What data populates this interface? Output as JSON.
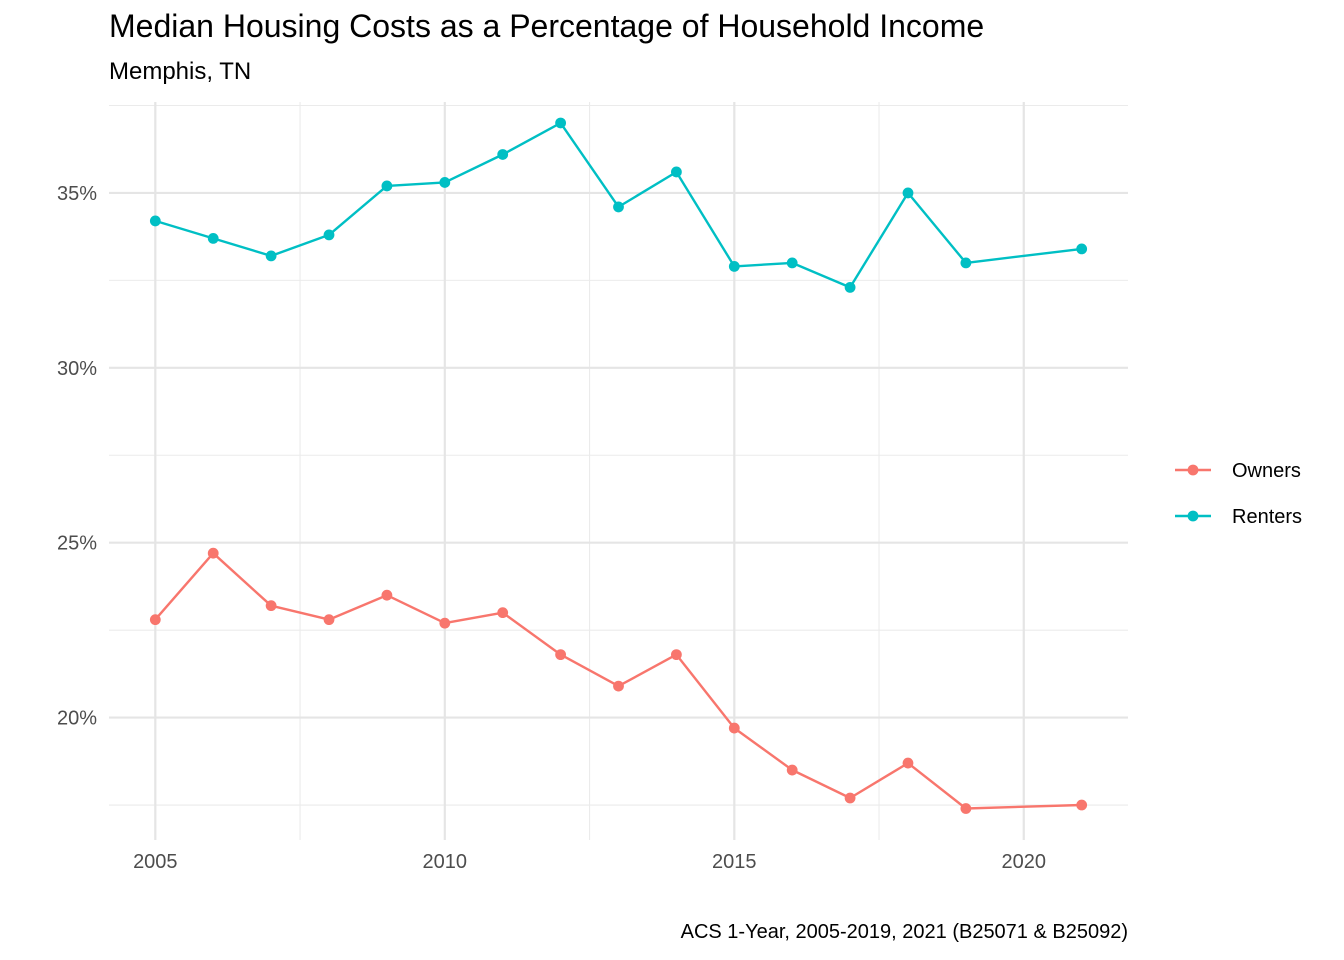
{
  "chart_data": {
    "type": "line",
    "title": "Median Housing Costs as a Percentage of Household Income",
    "subtitle": "Memphis, TN",
    "caption": "ACS 1-Year, 2005-2019, 2021 (B25071 & B25092)",
    "xlabel": "",
    "ylabel": "",
    "x_ticks": [
      2005,
      2010,
      2015,
      2020
    ],
    "y_ticks": [
      20,
      25,
      30,
      35
    ],
    "y_tick_labels": [
      "20%",
      "25%",
      "30%",
      "35%"
    ],
    "xlim": [
      2004.2,
      2021.8
    ],
    "ylim": [
      16.5,
      37.6
    ],
    "grid": true,
    "legend_position": "right",
    "series": [
      {
        "name": "Owners",
        "color": "#F8766D",
        "x": [
          2005,
          2006,
          2007,
          2008,
          2009,
          2010,
          2011,
          2012,
          2013,
          2014,
          2015,
          2016,
          2017,
          2018,
          2019,
          2021
        ],
        "values": [
          22.8,
          24.7,
          23.2,
          22.8,
          23.5,
          22.7,
          23.0,
          21.8,
          20.9,
          21.8,
          19.7,
          18.5,
          17.7,
          18.7,
          17.4,
          17.5
        ]
      },
      {
        "name": "Renters",
        "color": "#00BFC4",
        "x": [
          2005,
          2006,
          2007,
          2008,
          2009,
          2010,
          2011,
          2012,
          2013,
          2014,
          2015,
          2016,
          2017,
          2018,
          2019,
          2021
        ],
        "values": [
          34.2,
          33.7,
          33.2,
          33.8,
          35.2,
          35.3,
          36.1,
          37.0,
          34.6,
          35.6,
          32.9,
          33.0,
          32.3,
          35.0,
          33.0,
          33.4
        ]
      }
    ]
  }
}
